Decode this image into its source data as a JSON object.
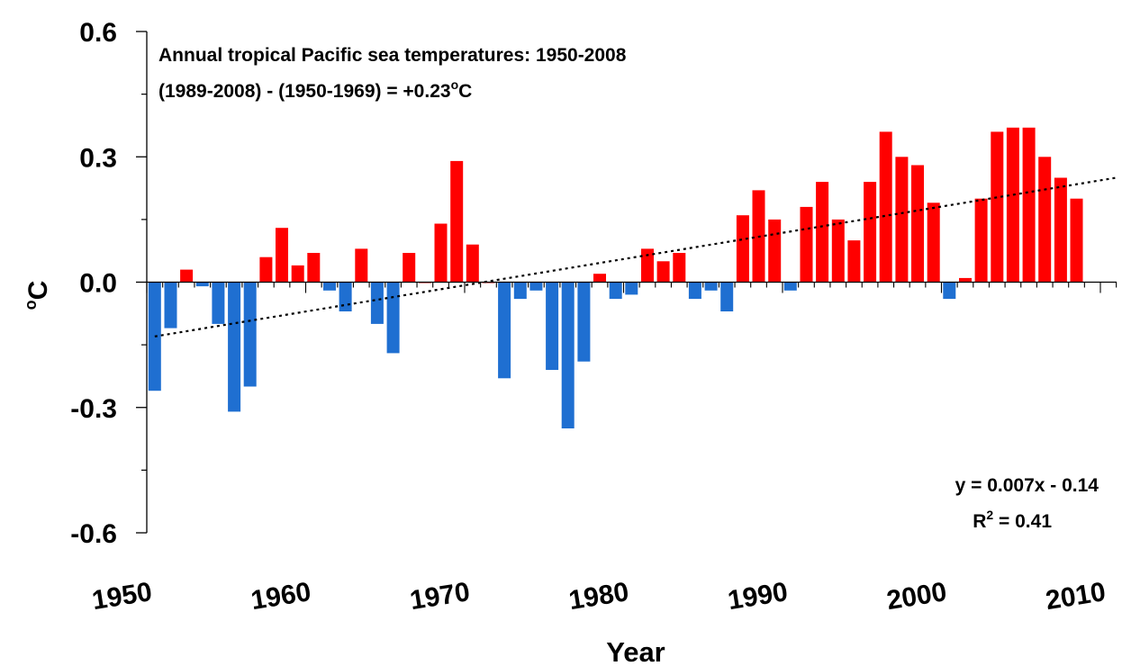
{
  "chart_data": {
    "type": "bar",
    "title": "Annual tropical Pacific sea temperatures: 1950-2008",
    "subtitle": "(1989-2008) - (1950-1969) = +0.23°C",
    "subtitle_parts": {
      "prefix": "(1989-2008) - (1950-1969) = +0.23",
      "sup": "o",
      "suffix": "C"
    },
    "xlabel": "Year",
    "ylabel": "°C",
    "ylabel_parts": {
      "sup": "o",
      "main": "C"
    },
    "ylim": [
      -0.6,
      0.6
    ],
    "xlim": [
      1950,
      2011
    ],
    "yticks": [
      0.6,
      0.3,
      0.0,
      -0.3,
      -0.6
    ],
    "ytick_labels": [
      "0.6",
      "0.3",
      "0.0",
      "-0.3",
      "-0.6"
    ],
    "xticks": [
      1950,
      1960,
      1970,
      1980,
      1990,
      2000,
      2010
    ],
    "xtick_labels": [
      "1950",
      "1960",
      "1970",
      "1980",
      "1990",
      "2000",
      "2010"
    ],
    "grid": false,
    "colors": {
      "positive": "#ff0000",
      "negative": "#1f6fd1",
      "trend": "#000000"
    },
    "years": [
      1950,
      1951,
      1952,
      1953,
      1954,
      1955,
      1956,
      1957,
      1958,
      1959,
      1960,
      1961,
      1962,
      1963,
      1964,
      1965,
      1966,
      1967,
      1968,
      1969,
      1970,
      1971,
      1972,
      1973,
      1974,
      1975,
      1976,
      1977,
      1978,
      1979,
      1980,
      1981,
      1982,
      1983,
      1984,
      1985,
      1986,
      1987,
      1988,
      1989,
      1990,
      1991,
      1992,
      1993,
      1994,
      1995,
      1996,
      1997,
      1998,
      1999,
      2000,
      2001,
      2002,
      2003,
      2004,
      2005,
      2006,
      2007,
      2008
    ],
    "values": [
      -0.26,
      -0.11,
      0.03,
      -0.01,
      -0.1,
      -0.31,
      -0.25,
      0.06,
      0.13,
      0.04,
      0.07,
      -0.02,
      -0.07,
      0.08,
      -0.1,
      -0.17,
      0.07,
      0.0,
      0.14,
      0.29,
      0.09,
      0.0,
      -0.23,
      -0.04,
      -0.02,
      -0.21,
      -0.35,
      -0.19,
      0.02,
      -0.04,
      -0.03,
      0.08,
      0.05,
      0.07,
      -0.04,
      -0.02,
      -0.07,
      0.16,
      0.22,
      0.15,
      -0.02,
      0.18,
      0.24,
      0.15,
      0.1,
      0.24,
      0.36,
      0.3,
      0.28,
      0.19,
      -0.04,
      0.01,
      0.2,
      0.36,
      0.37,
      0.37,
      0.3,
      0.25,
      0.2
    ],
    "trend": {
      "x_start": 1950,
      "x_end": 2011,
      "y_start": -0.13,
      "y_end": 0.25,
      "style": "dotted"
    },
    "equation": "y = 0.007x - 0.14",
    "r2_parts": {
      "prefix": "R",
      "sup": "2",
      "suffix": " = 0.41"
    },
    "legend": "none"
  }
}
